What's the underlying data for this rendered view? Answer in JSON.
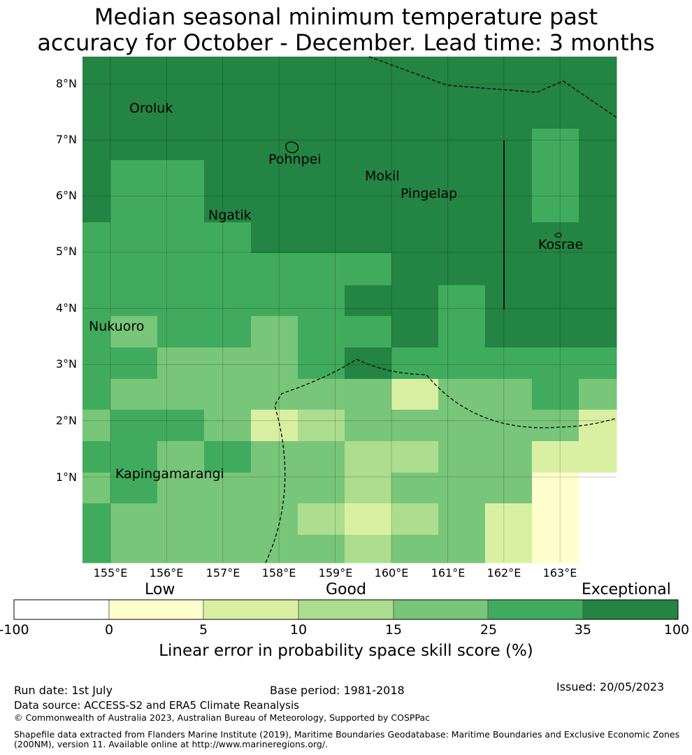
{
  "title_line1": "Median seasonal minimum temperature past",
  "title_line2": "accuracy for October - December. Lead time: 3 months",
  "map": {
    "lon_labels": [
      "155°E",
      "156°E",
      "157°E",
      "158°E",
      "159°E",
      "160°E",
      "161°E",
      "162°E",
      "163°E"
    ],
    "lat_labels": [
      "8°N",
      "7°N",
      "6°N",
      "5°N",
      "4°N",
      "3°N",
      "2°N",
      "1°N"
    ],
    "places": [
      "Oroluk",
      "Pohnpei",
      "Mokil",
      "Pingelap",
      "Ngatik",
      "Kosrae",
      "Nukuoro",
      "Kapingamarangi"
    ]
  },
  "legend": {
    "categories": [
      "Low",
      "Good",
      "Exceptional"
    ],
    "ticks": [
      "-100",
      "0",
      "5",
      "10",
      "15",
      "25",
      "35",
      "100"
    ],
    "colors": [
      "#ffffff",
      "#ffffcc",
      "#d9f0a3",
      "#addd8e",
      "#78c679",
      "#41ab5d",
      "#238443"
    ],
    "title": "Linear error in probability space skill score (%)"
  },
  "footer": {
    "run_date": "Run date: 1st July",
    "base_period": "Base period: 1981-2018",
    "issued": "Issued: 20/05/2023",
    "data_source": "Data source: ACCESS-S2 and ERA5 Climate Reanalysis",
    "copyright": "© Commonwealth of Australia 2023, Australian Bureau of Meteorology, Supported by COSPPac",
    "shapefile_line1": "Shapefile data extracted from Flanders Marine Institute (2019), Maritime Boundaries Geodatabase: Maritime Boundaries and Exclusive Economic Zones",
    "shapefile_line2": "(200NM), version 11. Available online at http://www.marineregions.org/."
  }
}
